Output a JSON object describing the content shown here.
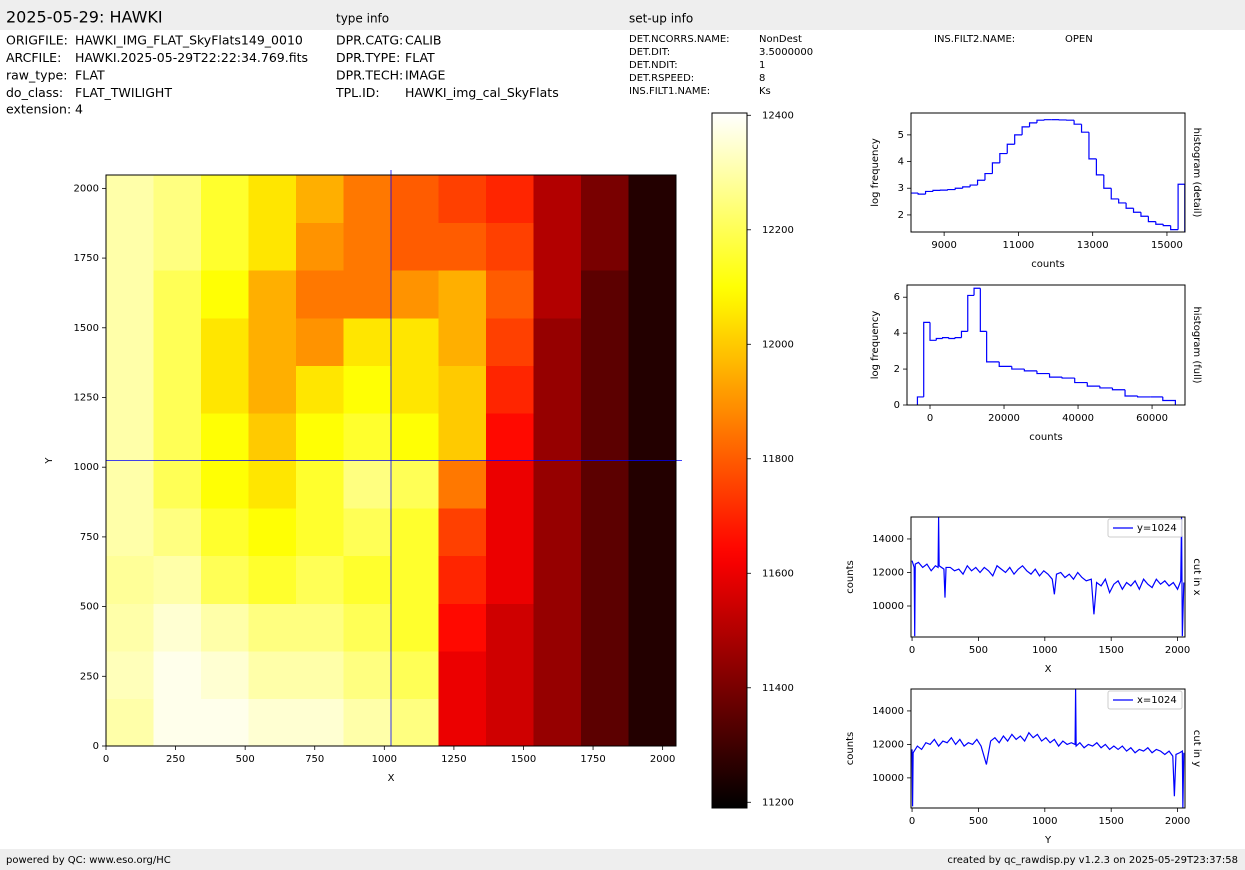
{
  "header": {
    "title": "2025-05-29: HAWKI",
    "fields": [
      {
        "key": "ORIGFILE:",
        "value": "HAWKI_IMG_FLAT_SkyFlats149_0010"
      },
      {
        "key": "ARCFILE:",
        "value": "HAWKI.2025-05-29T22:22:34.769.fits"
      },
      {
        "key": "raw_type:",
        "value": "FLAT"
      },
      {
        "key": "do_class:",
        "value": "FLAT_TWILIGHT"
      }
    ],
    "extension": {
      "key": "extension:",
      "value": 4
    }
  },
  "type_info": {
    "title": "type info",
    "fields": [
      {
        "key": "DPR.CATG:",
        "value": "CALIB"
      },
      {
        "key": "DPR.TYPE:",
        "value": "FLAT"
      },
      {
        "key": "DPR.TECH:",
        "value": "IMAGE"
      },
      {
        "key": "TPL.ID:",
        "value": "HAWKI_img_cal_SkyFlats"
      }
    ]
  },
  "setup_info": {
    "title": "set-up info",
    "fields": [
      {
        "key": "DET.NCORRS.NAME:",
        "value": "NonDest"
      },
      {
        "key": "DET.DIT:",
        "value": "3.5000000"
      },
      {
        "key": "DET.NDIT:",
        "value": 1
      },
      {
        "key": "DET.RSPEED:",
        "value": 8
      },
      {
        "key": "INS.FILT1.NAME:",
        "value": "Ks"
      }
    ],
    "extra_fields": [
      {
        "key": "INS.FILT2.NAME:",
        "value": "OPEN"
      }
    ]
  },
  "footer": {
    "left": "powered by QC: www.eso.org/HC",
    "right": "created by qc_rawdisp.py v1.2.3 on 2025-05-29T23:37:58"
  },
  "chart_data": [
    {
      "type": "heatmap",
      "xlabel": "X",
      "ylabel": "Y",
      "xlim": [
        0,
        2048
      ],
      "ylim": [
        0,
        2048
      ],
      "xticks": [
        0,
        250,
        500,
        750,
        1000,
        1250,
        1500,
        1750,
        2000
      ],
      "yticks": [
        0,
        250,
        500,
        750,
        1000,
        1250,
        1500,
        1750,
        2000
      ],
      "colormap": "hot",
      "clim": [
        11190,
        12404
      ],
      "colorbar_ticks": [
        11200,
        11400,
        11600,
        11800,
        12000,
        12200,
        12400
      ],
      "crosshair_x": 1024,
      "crosshair_y": 1024,
      "crosshair_color": "#0000ff",
      "z": [
        [
          12300,
          12380,
          12380,
          12350,
          12350,
          12300,
          12250,
          11600,
          11550,
          11450,
          11350,
          11250
        ],
        [
          12320,
          12380,
          12350,
          12300,
          12300,
          12250,
          12200,
          11600,
          11550,
          11450,
          11350,
          11250
        ],
        [
          12300,
          12350,
          12300,
          12250,
          12250,
          12200,
          12150,
          11650,
          11550,
          11450,
          11350,
          11250
        ],
        [
          12280,
          12300,
          12200,
          12150,
          12200,
          12150,
          12150,
          11700,
          11600,
          11450,
          11350,
          11250
        ],
        [
          12300,
          12250,
          12150,
          12100,
          12150,
          12200,
          12150,
          11750,
          11600,
          11450,
          11350,
          11250
        ],
        [
          12300,
          12200,
          12100,
          12050,
          12150,
          12250,
          12200,
          11850,
          11600,
          11450,
          11350,
          11250
        ],
        [
          12300,
          12200,
          12100,
          12000,
          12100,
          12150,
          12100,
          12000,
          11650,
          11450,
          11350,
          11250
        ],
        [
          12300,
          12200,
          12050,
          11950,
          12050,
          12100,
          12050,
          12000,
          11700,
          11450,
          11350,
          11250
        ],
        [
          12300,
          12200,
          12050,
          11950,
          11900,
          12050,
          12050,
          11950,
          11750,
          11450,
          11350,
          11250
        ],
        [
          12300,
          12200,
          12100,
          11950,
          11850,
          11850,
          11900,
          11950,
          11800,
          11500,
          11350,
          11250
        ],
        [
          12300,
          12250,
          12150,
          12050,
          11900,
          11850,
          11800,
          11800,
          11750,
          11500,
          11400,
          11250
        ],
        [
          12300,
          12250,
          12150,
          12050,
          11950,
          11850,
          11800,
          11750,
          11700,
          11500,
          11400,
          11250
        ]
      ]
    },
    {
      "type": "histogram",
      "title": "histogram (detail)",
      "xlabel": "counts",
      "ylabel": "log frequency",
      "color": "#0000ff",
      "bins": [
        8100,
        8300,
        8500,
        8700,
        8900,
        9100,
        9300,
        9500,
        9700,
        9900,
        10100,
        10300,
        10500,
        10700,
        10900,
        11100,
        11300,
        11500,
        11700,
        11900,
        12100,
        12300,
        12500,
        12700,
        12900,
        13100,
        13300,
        13500,
        13700,
        13900,
        14100,
        14300,
        14500,
        14700,
        14900,
        15100,
        15300,
        15480
      ],
      "values": [
        2.82,
        2.78,
        2.88,
        2.92,
        2.93,
        2.95,
        3.0,
        3.05,
        3.12,
        3.3,
        3.55,
        3.95,
        4.3,
        4.65,
        5.0,
        5.3,
        5.45,
        5.55,
        5.57,
        5.57,
        5.56,
        5.55,
        5.4,
        5.1,
        4.1,
        3.5,
        3.0,
        2.6,
        2.45,
        2.25,
        2.1,
        1.95,
        1.75,
        1.65,
        1.6,
        1.45,
        3.15
      ],
      "xlim": [
        8108,
        15486
      ],
      "ylim": [
        1.36,
        5.82
      ],
      "xticks": [
        9000,
        11000,
        13000,
        15000
      ],
      "yticks": [
        2,
        3,
        4,
        5
      ]
    },
    {
      "type": "histogram",
      "title": "histogram (full)",
      "xlabel": "counts",
      "ylabel": "log frequency",
      "color": "#0000ff",
      "bins": [
        -3400,
        -1700,
        0,
        1700,
        3400,
        5100,
        6800,
        8500,
        10200,
        11900,
        13600,
        15300,
        18700,
        22100,
        25500,
        28900,
        32300,
        35700,
        39100,
        42500,
        45900,
        49300,
        52700,
        56100,
        59500,
        62900,
        66300
      ],
      "values": [
        0.45,
        4.6,
        3.6,
        3.7,
        3.75,
        3.7,
        3.75,
        4.1,
        6.1,
        6.5,
        4.1,
        2.4,
        2.15,
        2.0,
        1.9,
        1.75,
        1.55,
        1.5,
        1.25,
        1.05,
        0.95,
        0.85,
        0.5,
        0.45,
        0.45,
        0.25
      ],
      "xlim": [
        -6216,
        68900
      ],
      "ylim": [
        0,
        6.68
      ],
      "xticks": [
        0,
        20000,
        40000,
        60000
      ],
      "yticks": [
        0,
        2,
        4,
        6
      ]
    },
    {
      "type": "line",
      "title": "cut in x",
      "xlabel": "X",
      "ylabel": "counts",
      "legend": "upper right",
      "x": [
        0,
        16,
        20,
        24,
        48,
        80,
        112,
        144,
        176,
        196,
        200,
        204,
        240,
        248,
        256,
        288,
        320,
        352,
        384,
        416,
        448,
        480,
        512,
        544,
        576,
        608,
        640,
        672,
        704,
        736,
        768,
        800,
        832,
        864,
        896,
        928,
        960,
        992,
        1024,
        1056,
        1072,
        1088,
        1120,
        1152,
        1184,
        1216,
        1248,
        1280,
        1312,
        1350,
        1370,
        1390,
        1424,
        1456,
        1488,
        1520,
        1552,
        1584,
        1616,
        1648,
        1680,
        1712,
        1744,
        1776,
        1808,
        1840,
        1872,
        1904,
        1936,
        1968,
        2000,
        2024,
        2030,
        2036,
        2047
      ],
      "series": [
        {
          "name": "y=1024",
          "color": "#0000ff",
          "values": [
            12700,
            12300,
            8200,
            12500,
            12600,
            12300,
            12500,
            12100,
            12400,
            12300,
            15300,
            12400,
            12200,
            10500,
            12300,
            12300,
            12100,
            12200,
            11900,
            12400,
            12100,
            12300,
            12000,
            12300,
            12100,
            11800,
            12400,
            12200,
            12000,
            12300,
            11900,
            12200,
            12400,
            12100,
            11900,
            12200,
            11800,
            12100,
            11900,
            11600,
            10700,
            11900,
            12000,
            11700,
            11900,
            11600,
            12000,
            11700,
            11500,
            11600,
            9500,
            11400,
            11200,
            11600,
            10800,
            11300,
            11500,
            11000,
            11400,
            11200,
            11500,
            11000,
            11600,
            11300,
            11100,
            11600,
            11300,
            11500,
            11200,
            11400,
            11000,
            11500,
            15300,
            8200,
            11400
          ]
        }
      ],
      "xlim": [
        -8,
        2056
      ],
      "ylim": [
        8150,
        15310
      ],
      "xticks": [
        0,
        500,
        1000,
        1500,
        2000
      ],
      "yticks": [
        10000,
        12000,
        14000
      ]
    },
    {
      "type": "line",
      "title": "cut in y",
      "xlabel": "Y",
      "ylabel": "counts",
      "legend": "upper right",
      "x": [
        0,
        4,
        8,
        40,
        72,
        104,
        136,
        168,
        200,
        232,
        264,
        296,
        328,
        360,
        392,
        424,
        456,
        488,
        520,
        560,
        592,
        624,
        656,
        688,
        720,
        752,
        784,
        816,
        848,
        880,
        912,
        944,
        976,
        1008,
        1040,
        1072,
        1104,
        1136,
        1168,
        1200,
        1228,
        1232,
        1236,
        1264,
        1296,
        1328,
        1360,
        1392,
        1424,
        1456,
        1488,
        1520,
        1552,
        1584,
        1616,
        1648,
        1680,
        1712,
        1744,
        1776,
        1808,
        1840,
        1872,
        1904,
        1936,
        1964,
        1976,
        1988,
        2016,
        2036,
        2040,
        2047
      ],
      "series": [
        {
          "name": "x=1024",
          "color": "#0000ff",
          "values": [
            11700,
            8300,
            11500,
            11900,
            11700,
            12100,
            12000,
            12300,
            11900,
            12200,
            12100,
            12400,
            12000,
            12300,
            11900,
            12100,
            12000,
            12300,
            11900,
            10800,
            12200,
            12400,
            12100,
            12500,
            12200,
            12600,
            12300,
            12500,
            12200,
            12700,
            12400,
            12600,
            12200,
            12400,
            12100,
            12300,
            11900,
            12200,
            12000,
            12100,
            12000,
            15300,
            11900,
            12100,
            11800,
            12000,
            11900,
            12100,
            11800,
            12000,
            11700,
            11900,
            11700,
            11900,
            11600,
            11800,
            11500,
            11700,
            11600,
            11800,
            11500,
            11700,
            11600,
            11400,
            11600,
            11300,
            8900,
            11400,
            11500,
            11600,
            8200,
            11500
          ]
        }
      ],
      "xlim": [
        -8,
        2056
      ],
      "ylim": [
        8200,
        15310
      ],
      "xticks": [
        0,
        500,
        1000,
        1500,
        2000
      ],
      "yticks": [
        10000,
        12000,
        14000
      ]
    }
  ]
}
